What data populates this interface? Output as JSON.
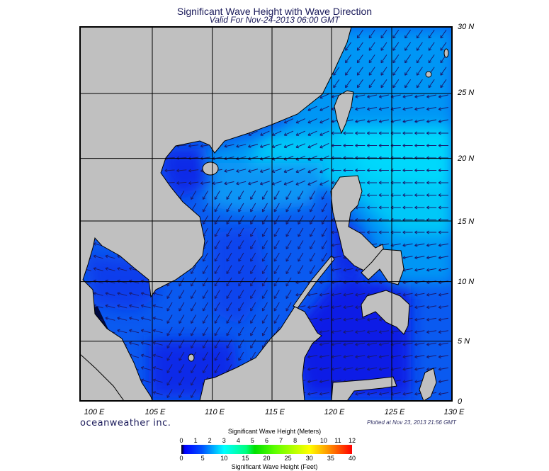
{
  "title": "Significant Wave Height with Wave Direction",
  "subtitle": "Valid For Nov-24-2013 06:00 GMT",
  "lat_labels": [
    "30 N",
    "25 N",
    "20 N",
    "15 N",
    "10 N",
    "5 N",
    "0"
  ],
  "lon_labels": [
    "100 E",
    "105 E",
    "110 E",
    "115 E",
    "120 E",
    "125 E",
    "130 E"
  ],
  "logo": "oceanweather inc.",
  "plotted": "Plotted at Nov 23, 2013 21:56 GMT",
  "legend": {
    "title_meters": "Significant Wave Height (Meters)",
    "title_feet": "Significant Wave Height (Feet)",
    "meters_ticks": [
      "0",
      "1",
      "2",
      "3",
      "4",
      "5",
      "6",
      "7",
      "8",
      "9",
      "10",
      "11",
      "12"
    ],
    "feet_ticks": [
      "0",
      "5",
      "10",
      "15",
      "20",
      "25",
      "30",
      "35",
      "40"
    ]
  },
  "colors": {
    "land": "#c0c0c0",
    "ocean_dark": "#0a1ee6",
    "ocean_mid": "#0a5af0",
    "ocean_light": "#0096f5",
    "ocean_cyan": "#00d2fa",
    "arrow": "#1a1a6e"
  }
}
